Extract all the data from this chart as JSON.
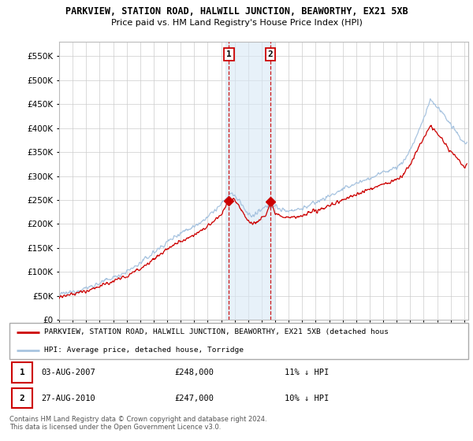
{
  "title": "PARKVIEW, STATION ROAD, HALWILL JUNCTION, BEAWORTHY, EX21 5XB",
  "subtitle": "Price paid vs. HM Land Registry's House Price Index (HPI)",
  "ylim": [
    0,
    580000
  ],
  "yticks": [
    0,
    50000,
    100000,
    150000,
    200000,
    250000,
    300000,
    350000,
    400000,
    450000,
    500000,
    550000
  ],
  "xlim_start": 1995.0,
  "xlim_end": 2025.3,
  "sale1_date": 2007.58,
  "sale1_price": 248000,
  "sale2_date": 2010.65,
  "sale2_price": 247000,
  "hpi_color": "#a8c4e0",
  "sale_color": "#cc0000",
  "annotation_box_color": "#d8e8f5",
  "annotation_line_color": "#cc0000",
  "legend_text1": "PARKVIEW, STATION ROAD, HALWILL JUNCTION, BEAWORTHY, EX21 5XB (detached hous",
  "legend_text2": "HPI: Average price, detached house, Torridge",
  "table_row1": [
    "1",
    "03-AUG-2007",
    "£248,000",
    "11% ↓ HPI"
  ],
  "table_row2": [
    "2",
    "27-AUG-2010",
    "£247,000",
    "10% ↓ HPI"
  ],
  "footer": "Contains HM Land Registry data © Crown copyright and database right 2024.\nThis data is licensed under the Open Government Licence v3.0.",
  "background_color": "#ffffff",
  "grid_color": "#cccccc"
}
